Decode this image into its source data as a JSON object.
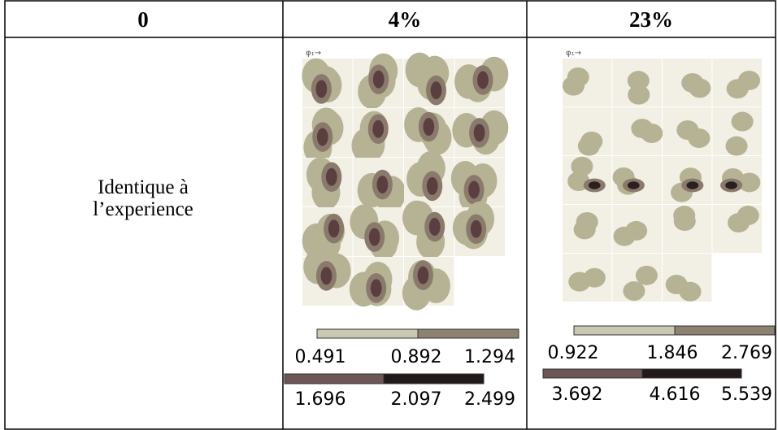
{
  "table": {
    "header": [
      "0",
      "4%",
      "23%"
    ],
    "row": {
      "line1": "Identique à",
      "line2": "l’experience"
    }
  },
  "legends": [
    {
      "top": [
        "0.491",
        "0.892",
        "1.294"
      ],
      "bottom": [
        "1.696",
        "2.097",
        "2.499"
      ]
    },
    {
      "top": [
        "0.922",
        "1.846",
        "2.769"
      ],
      "bottom": [
        "3.692",
        "4.616",
        "5.539"
      ]
    }
  ]
}
